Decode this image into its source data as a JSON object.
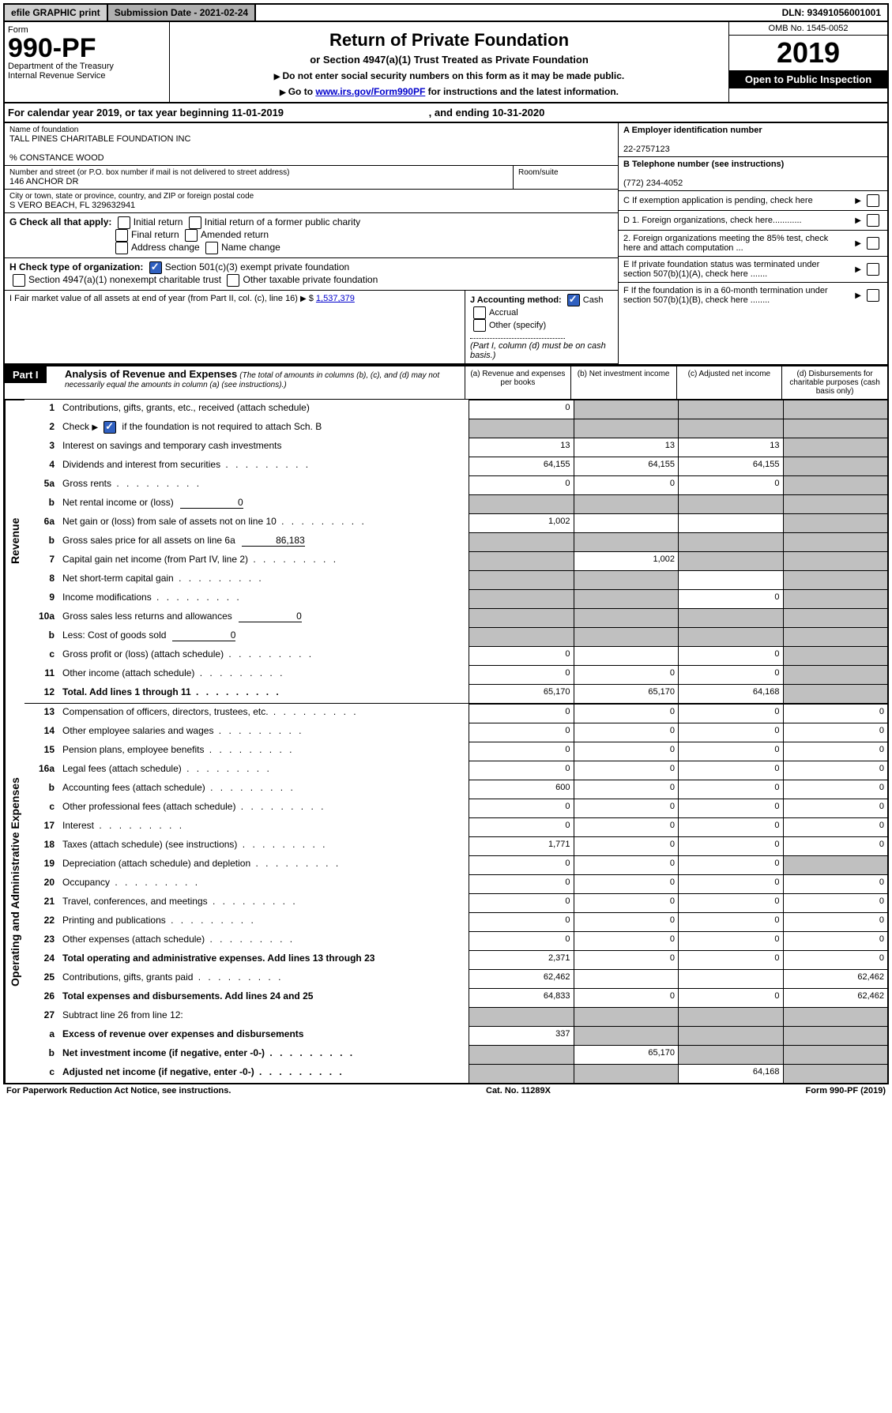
{
  "topbar": {
    "efile": "efile GRAPHIC print",
    "submission": "Submission Date - 2021-02-24",
    "dln": "DLN: 93491056001001"
  },
  "header": {
    "form": "Form",
    "formNumber": "990-PF",
    "dept": "Department of the Treasury",
    "irs": "Internal Revenue Service",
    "title": "Return of Private Foundation",
    "subtitle": "or Section 4947(a)(1) Trust Treated as Private Foundation",
    "note1": "Do not enter social security numbers on this form as it may be made public.",
    "note2": "Go to www.irs.gov/Form990PF for instructions and the latest information.",
    "link": "www.irs.gov/Form990PF",
    "omb": "OMB No. 1545-0052",
    "year": "2019",
    "openPublic": "Open to Public Inspection"
  },
  "calYear": {
    "prefix": "For calendar year 2019, or tax year beginning",
    "begin": "11-01-2019",
    "mid": ", and ending",
    "end": "10-31-2020"
  },
  "foundation": {
    "nameLabel": "Name of foundation",
    "name": "TALL PINES CHARITABLE FOUNDATION INC",
    "careOf": "% Constance Wood",
    "addrLabel": "Number and street (or P.O. box number if mail is not delivered to street address)",
    "roomLabel": "Room/suite",
    "addr": "146 ANCHOR DR",
    "cityLabel": "City or town, state or province, country, and ZIP or foreign postal code",
    "city": "S VERO BEACH, FL  329632941"
  },
  "rightBox": {
    "aLabel": "A Employer identification number",
    "ein": "22-2757123",
    "bLabel": "B Telephone number (see instructions)",
    "phone": "(772) 234-4052",
    "cLabel": "C If exemption application is pending, check here",
    "d1": "D 1. Foreign organizations, check here............",
    "d2": "2. Foreign organizations meeting the 85% test, check here and attach computation ...",
    "eLabel": "E  If private foundation status was terminated under section 507(b)(1)(A), check here .......",
    "fLabel": "F  If the foundation is in a 60-month termination under section 507(b)(1)(B), check here ........"
  },
  "checkG": {
    "label": "G Check all that apply:",
    "initial": "Initial return",
    "initialFormer": "Initial return of a former public charity",
    "final": "Final return",
    "amended": "Amended return",
    "address": "Address change",
    "name": "Name change"
  },
  "checkH": {
    "label": "H Check type of organization:",
    "s501": "Section 501(c)(3) exempt private foundation",
    "s4947": "Section 4947(a)(1) nonexempt charitable trust",
    "other": "Other taxable private foundation"
  },
  "sectionI": {
    "label": "I Fair market value of all assets at end of year (from Part II, col. (c), line 16)",
    "value": "1,537,379"
  },
  "sectionJ": {
    "label": "J Accounting method:",
    "cash": "Cash",
    "accrual": "Accrual",
    "other": "Other (specify)",
    "note": "(Part I, column (d) must be on cash basis.)"
  },
  "partI": {
    "label": "Part I",
    "title": "Analysis of Revenue and Expenses",
    "sub": "(The total of amounts in columns (b), (c), and (d) may not necessarily equal the amounts in column (a) (see instructions).)",
    "colA": "(a)   Revenue and expenses per books",
    "colB": "(b)  Net investment income",
    "colC": "(c)  Adjusted net income",
    "colD": "(d)  Disbursements for charitable purposes (cash basis only)"
  },
  "sideLabels": {
    "revenue": "Revenue",
    "expenses": "Operating and Administrative Expenses"
  },
  "rows": {
    "r1": {
      "n": "1",
      "d": "Contributions, gifts, grants, etc., received (attach schedule)",
      "a": "0"
    },
    "r2": {
      "n": "2",
      "d": "if the foundation is not required to attach Sch. B",
      "pre": "Check"
    },
    "r3": {
      "n": "3",
      "d": "Interest on savings and temporary cash investments",
      "a": "13",
      "b": "13",
      "c": "13"
    },
    "r4": {
      "n": "4",
      "d": "Dividends and interest from securities",
      "a": "64,155",
      "b": "64,155",
      "c": "64,155"
    },
    "r5a": {
      "n": "5a",
      "d": "Gross rents",
      "a": "0",
      "b": "0",
      "c": "0"
    },
    "r5b": {
      "n": "b",
      "d": "Net rental income or (loss)",
      "v": "0"
    },
    "r6a": {
      "n": "6a",
      "d": "Net gain or (loss) from sale of assets not on line 10",
      "a": "1,002"
    },
    "r6b": {
      "n": "b",
      "d": "Gross sales price for all assets on line 6a",
      "v": "86,183"
    },
    "r7": {
      "n": "7",
      "d": "Capital gain net income (from Part IV, line 2)",
      "b": "1,002"
    },
    "r8": {
      "n": "8",
      "d": "Net short-term capital gain"
    },
    "r9": {
      "n": "9",
      "d": "Income modifications",
      "c": "0"
    },
    "r10a": {
      "n": "10a",
      "d": "Gross sales less returns and allowances",
      "v": "0"
    },
    "r10b": {
      "n": "b",
      "d": "Less: Cost of goods sold",
      "v": "0"
    },
    "r10c": {
      "n": "c",
      "d": "Gross profit or (loss) (attach schedule)",
      "a": "0",
      "c": "0"
    },
    "r11": {
      "n": "11",
      "d": "Other income (attach schedule)",
      "a": "0",
      "b": "0",
      "c": "0"
    },
    "r12": {
      "n": "12",
      "d": "Total. Add lines 1 through 11",
      "a": "65,170",
      "b": "65,170",
      "c": "64,168"
    },
    "r13": {
      "n": "13",
      "d": "Compensation of officers, directors, trustees, etc.",
      "a": "0",
      "b": "0",
      "c": "0",
      "dd": "0"
    },
    "r14": {
      "n": "14",
      "d": "Other employee salaries and wages",
      "a": "0",
      "b": "0",
      "c": "0",
      "dd": "0"
    },
    "r15": {
      "n": "15",
      "d": "Pension plans, employee benefits",
      "a": "0",
      "b": "0",
      "c": "0",
      "dd": "0"
    },
    "r16a": {
      "n": "16a",
      "d": "Legal fees (attach schedule)",
      "a": "0",
      "b": "0",
      "c": "0",
      "dd": "0"
    },
    "r16b": {
      "n": "b",
      "d": "Accounting fees (attach schedule)",
      "a": "600",
      "b": "0",
      "c": "0",
      "dd": "0"
    },
    "r16c": {
      "n": "c",
      "d": "Other professional fees (attach schedule)",
      "a": "0",
      "b": "0",
      "c": "0",
      "dd": "0"
    },
    "r17": {
      "n": "17",
      "d": "Interest",
      "a": "0",
      "b": "0",
      "c": "0",
      "dd": "0"
    },
    "r18": {
      "n": "18",
      "d": "Taxes (attach schedule) (see instructions)",
      "a": "1,771",
      "b": "0",
      "c": "0",
      "dd": "0"
    },
    "r19": {
      "n": "19",
      "d": "Depreciation (attach schedule) and depletion",
      "a": "0",
      "b": "0",
      "c": "0"
    },
    "r20": {
      "n": "20",
      "d": "Occupancy",
      "a": "0",
      "b": "0",
      "c": "0",
      "dd": "0"
    },
    "r21": {
      "n": "21",
      "d": "Travel, conferences, and meetings",
      "a": "0",
      "b": "0",
      "c": "0",
      "dd": "0"
    },
    "r22": {
      "n": "22",
      "d": "Printing and publications",
      "a": "0",
      "b": "0",
      "c": "0",
      "dd": "0"
    },
    "r23": {
      "n": "23",
      "d": "Other expenses (attach schedule)",
      "a": "0",
      "b": "0",
      "c": "0",
      "dd": "0"
    },
    "r24": {
      "n": "24",
      "d": "Total operating and administrative expenses. Add lines 13 through 23",
      "a": "2,371",
      "b": "0",
      "c": "0",
      "dd": "0"
    },
    "r25": {
      "n": "25",
      "d": "Contributions, gifts, grants paid",
      "a": "62,462",
      "dd": "62,462"
    },
    "r26": {
      "n": "26",
      "d": "Total expenses and disbursements. Add lines 24 and 25",
      "a": "64,833",
      "b": "0",
      "c": "0",
      "dd": "62,462"
    },
    "r27": {
      "n": "27",
      "d": "Subtract line 26 from line 12:"
    },
    "r27a": {
      "n": "a",
      "d": "Excess of revenue over expenses and disbursements",
      "a": "337"
    },
    "r27b": {
      "n": "b",
      "d": "Net investment income (if negative, enter -0-)",
      "b": "65,170"
    },
    "r27c": {
      "n": "c",
      "d": "Adjusted net income (if negative, enter -0-)",
      "c": "64,168"
    }
  },
  "footer": {
    "left": "For Paperwork Reduction Act Notice, see instructions.",
    "center": "Cat. No. 11289X",
    "right": "Form 990-PF (2019)"
  }
}
